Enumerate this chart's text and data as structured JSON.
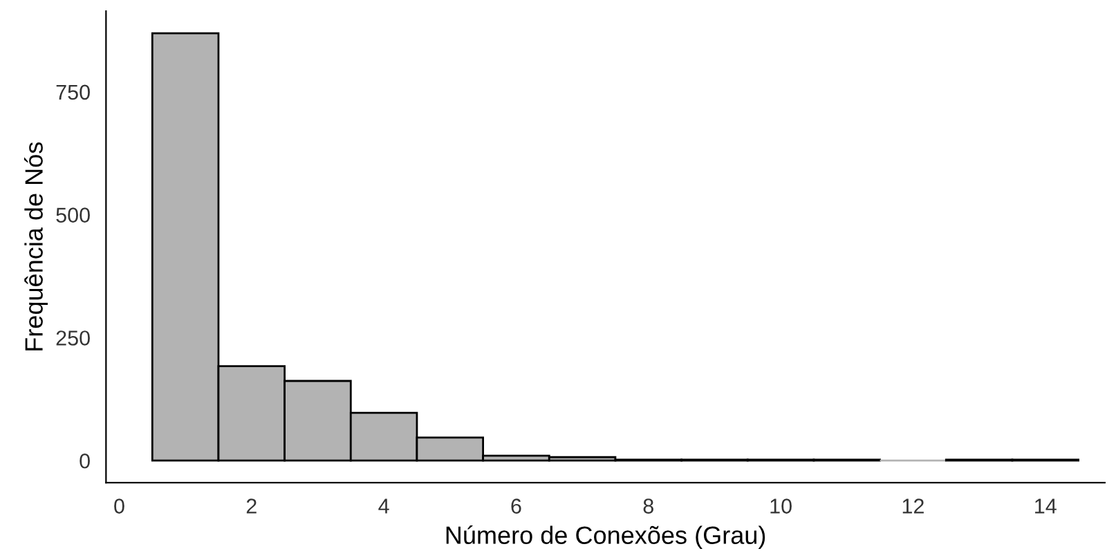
{
  "chart_data": {
    "type": "histogram",
    "xlabel": "Número de Conexões (Grau)",
    "ylabel": "Frequência de Nós",
    "bins": [
      0.5,
      1.5,
      2.5,
      3.5,
      4.5,
      5.5,
      6.5,
      7.5,
      8.5,
      9.5,
      10.5,
      11.5,
      12.5,
      13.5,
      14.5
    ],
    "values": [
      869,
      192,
      162,
      97,
      47,
      10,
      7,
      2,
      2,
      2,
      2,
      0,
      2,
      2
    ],
    "color": "#b3b3b3",
    "xlim": [
      -0.2,
      14.9
    ],
    "ylim": [
      -45,
      914
    ],
    "xticks": [
      0,
      2,
      4,
      6,
      8,
      10,
      12,
      14
    ],
    "yticks": [
      0,
      250,
      500,
      750
    ],
    "grid": false
  }
}
